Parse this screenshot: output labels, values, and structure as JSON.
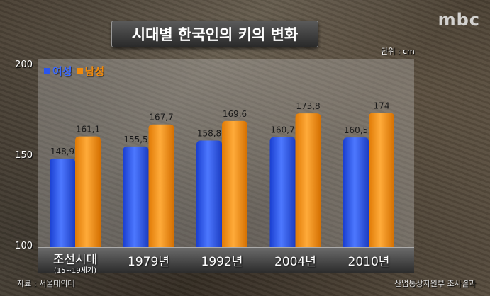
{
  "logo_text": "mbc",
  "chart_data": {
    "type": "bar",
    "title": "시대별 한국인의 키의 변화",
    "unit": "단위 : cm",
    "categories": [
      "조선시대",
      "1979년",
      "1992년",
      "2004년",
      "2010년"
    ],
    "category_sublabels": [
      "(15~19세기)",
      "",
      "",
      "",
      ""
    ],
    "series": [
      {
        "name": "여성",
        "color": "#2a55ee",
        "values": [
          148.9,
          155.5,
          158.8,
          160.7,
          160.5
        ],
        "labels": [
          "148,9",
          "155,5",
          "158,8",
          "160,7",
          "160,5"
        ]
      },
      {
        "name": "남성",
        "color": "#f08a0c",
        "values": [
          161.1,
          167.7,
          169.6,
          173.8,
          174
        ],
        "labels": [
          "161,1",
          "167,7",
          "169,6",
          "173,8",
          "174"
        ]
      }
    ],
    "ylim": [
      100,
      200
    ],
    "yticks": [
      100,
      150,
      200
    ],
    "grid": false,
    "legend_position": "top-left",
    "source_left": "자료 : 서울대의대",
    "source_right": "산업통상자원부 조사결과"
  }
}
